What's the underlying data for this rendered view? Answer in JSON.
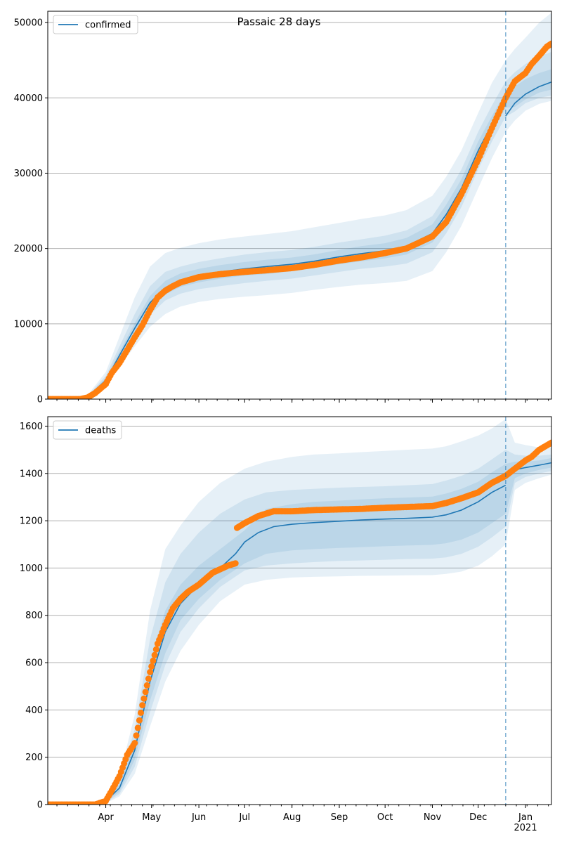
{
  "title": "Passaic 28 days",
  "chart_data": [
    {
      "type": "line",
      "panel": "top",
      "legend": "confirmed",
      "legend_position": "top-left",
      "grid": "horizontal",
      "ylim": [
        0,
        51500
      ],
      "yticks": [
        0,
        10000,
        20000,
        30000,
        40000,
        50000
      ],
      "ytick_labels": [
        "0",
        "10000",
        "20000",
        "30000",
        "40000",
        "50000"
      ],
      "xlim": [
        "2020-02-23",
        "2021-01-18"
      ],
      "forecast_start": "2020-12-19",
      "model": {
        "x": [
          "2020-02-23",
          "2020-03-10",
          "2020-03-20",
          "2020-04-01",
          "2020-04-10",
          "2020-04-20",
          "2020-04-30",
          "2020-05-10",
          "2020-05-20",
          "2020-06-01",
          "2020-06-15",
          "2020-07-01",
          "2020-07-15",
          "2020-08-01",
          "2020-08-15",
          "2020-09-01",
          "2020-09-15",
          "2020-10-01",
          "2020-10-15",
          "2020-11-01",
          "2020-11-10",
          "2020-11-20",
          "2020-12-01",
          "2020-12-10",
          "2020-12-19",
          "2020-12-19",
          "2020-12-25",
          "2021-01-01",
          "2021-01-10",
          "2021-01-18"
        ],
        "y": [
          0,
          0,
          300,
          2500,
          5800,
          9400,
          12800,
          14800,
          15800,
          16400,
          16900,
          17300,
          17600,
          17900,
          18300,
          18900,
          19300,
          19700,
          20300,
          22000,
          24500,
          28000,
          33000,
          36500,
          39800,
          37600,
          39300,
          40500,
          41500,
          42100
        ]
      },
      "observed": {
        "x": [
          "2020-02-23",
          "2020-03-15",
          "2020-03-20",
          "2020-03-25",
          "2020-04-01",
          "2020-04-05",
          "2020-04-10",
          "2020-04-15",
          "2020-04-20",
          "2020-04-25",
          "2020-04-30",
          "2020-05-05",
          "2020-05-10",
          "2020-05-15",
          "2020-05-20",
          "2020-06-01",
          "2020-06-15",
          "2020-07-01",
          "2020-07-15",
          "2020-08-01",
          "2020-08-15",
          "2020-09-01",
          "2020-09-15",
          "2020-10-01",
          "2020-10-15",
          "2020-11-01",
          "2020-11-10",
          "2020-11-20",
          "2020-12-01",
          "2020-12-10",
          "2020-12-19",
          "2020-12-25",
          "2021-01-01",
          "2021-01-05",
          "2021-01-10",
          "2021-01-15",
          "2021-01-18"
        ],
        "y": [
          0,
          0,
          200,
          800,
          2000,
          3500,
          4800,
          6500,
          8200,
          9800,
          11800,
          13500,
          14400,
          15000,
          15500,
          16200,
          16600,
          16900,
          17100,
          17400,
          17800,
          18400,
          18800,
          19400,
          20000,
          21600,
          23500,
          27200,
          31800,
          36000,
          40000,
          42200,
          43300,
          44500,
          45600,
          46800,
          47200
        ]
      },
      "bands": {
        "x": [
          "2020-02-23",
          "2020-03-10",
          "2020-03-20",
          "2020-04-01",
          "2020-04-10",
          "2020-04-20",
          "2020-04-30",
          "2020-05-10",
          "2020-05-20",
          "2020-06-01",
          "2020-06-15",
          "2020-07-01",
          "2020-07-15",
          "2020-08-01",
          "2020-08-15",
          "2020-09-01",
          "2020-09-15",
          "2020-10-01",
          "2020-10-15",
          "2020-11-01",
          "2020-11-10",
          "2020-11-20",
          "2020-12-01",
          "2020-12-10",
          "2020-12-19",
          "2020-12-25",
          "2021-01-01",
          "2021-01-10",
          "2021-01-18"
        ],
        "outer_low": [
          0,
          0,
          200,
          1800,
          4300,
          7000,
          9600,
          11300,
          12300,
          12900,
          13300,
          13600,
          13800,
          14100,
          14500,
          14900,
          15200,
          15400,
          15700,
          17000,
          19500,
          23000,
          28000,
          32000,
          35500,
          37000,
          38300,
          39200,
          39600
        ],
        "outer_high": [
          0,
          0,
          500,
          3600,
          8300,
          13500,
          17600,
          19400,
          20100,
          20700,
          21200,
          21600,
          21900,
          22300,
          22800,
          23400,
          23900,
          24400,
          25100,
          27000,
          29500,
          33000,
          38000,
          42000,
          45000,
          46500,
          48000,
          50000,
          51300
        ],
        "middle_low": [
          0,
          0,
          250,
          2100,
          5000,
          8200,
          11200,
          13100,
          14000,
          14600,
          15000,
          15400,
          15700,
          16000,
          16400,
          16900,
          17300,
          17600,
          18000,
          19500,
          22000,
          25500,
          30500,
          34200,
          37500,
          38200,
          39300,
          40000,
          40300
        ],
        "middle_high": [
          0,
          0,
          400,
          3100,
          7000,
          11300,
          15000,
          16900,
          17600,
          18200,
          18700,
          19200,
          19500,
          19800,
          20200,
          20800,
          21200,
          21700,
          22400,
          24300,
          27000,
          30500,
          35500,
          39000,
          42200,
          43400,
          44500,
          45500,
          46100
        ],
        "inner_low": [
          0,
          0,
          280,
          2300,
          5400,
          8800,
          12000,
          13900,
          14900,
          15500,
          16000,
          16400,
          16600,
          17000,
          17400,
          17900,
          18300,
          18700,
          19200,
          20800,
          23300,
          26800,
          31800,
          35400,
          38700,
          38800,
          39800,
          40700,
          41100
        ],
        "inner_high": [
          0,
          0,
          350,
          2800,
          6300,
          10100,
          13700,
          15700,
          16700,
          17300,
          17800,
          18200,
          18500,
          18800,
          19200,
          19800,
          20300,
          20700,
          21400,
          23200,
          25800,
          29200,
          34200,
          37600,
          40800,
          41500,
          42500,
          43300,
          43800
        ]
      }
    },
    {
      "type": "line",
      "panel": "bottom",
      "legend": "deaths",
      "legend_position": "top-left",
      "grid": "horizontal",
      "ylim": [
        0,
        1640
      ],
      "yticks": [
        0,
        200,
        400,
        600,
        800,
        1000,
        1200,
        1400,
        1600
      ],
      "ytick_labels": [
        "0",
        "200",
        "400",
        "600",
        "800",
        "1000",
        "1200",
        "1400",
        "1600"
      ],
      "xlim": [
        "2020-02-23",
        "2021-01-18"
      ],
      "xticks": [
        "2020-04-01",
        "2020-05-01",
        "2020-06-01",
        "2020-07-01",
        "2020-08-01",
        "2020-09-01",
        "2020-10-01",
        "2020-11-01",
        "2020-12-01",
        "2021-01-01"
      ],
      "xtick_labels": [
        "Apr",
        "May",
        "Jun",
        "Jul",
        "Aug",
        "Sep",
        "Oct",
        "Nov",
        "Dec",
        "Jan"
      ],
      "year_label": "2021",
      "forecast_start": "2020-12-19",
      "model": {
        "x": [
          "2020-02-23",
          "2020-03-25",
          "2020-04-01",
          "2020-04-10",
          "2020-04-20",
          "2020-04-30",
          "2020-05-10",
          "2020-05-20",
          "2020-06-01",
          "2020-06-15",
          "2020-06-25",
          "2020-07-01",
          "2020-07-10",
          "2020-07-20",
          "2020-08-01",
          "2020-08-15",
          "2020-09-01",
          "2020-09-15",
          "2020-10-01",
          "2020-10-15",
          "2020-11-01",
          "2020-11-10",
          "2020-11-20",
          "2020-12-01",
          "2020-12-10",
          "2020-12-19",
          "2020-12-19",
          "2020-12-25",
          "2021-01-01",
          "2021-01-10",
          "2021-01-18"
        ],
        "y": [
          0,
          0,
          15,
          70,
          230,
          520,
          730,
          850,
          930,
          1000,
          1060,
          1110,
          1150,
          1175,
          1185,
          1192,
          1198,
          1203,
          1207,
          1210,
          1215,
          1225,
          1245,
          1280,
          1320,
          1350,
          1400,
          1415,
          1425,
          1435,
          1445
        ]
      },
      "observed": {
        "x": [
          "2020-02-23",
          "2020-03-25",
          "2020-04-01",
          "2020-04-05",
          "2020-04-10",
          "2020-04-15",
          "2020-04-20",
          "2020-04-25",
          "2020-04-30",
          "2020-05-05",
          "2020-05-10",
          "2020-05-15",
          "2020-05-20",
          "2020-05-25",
          "2020-06-01",
          "2020-06-10",
          "2020-06-20",
          "2020-06-25",
          "2020-06-26",
          "2020-07-01",
          "2020-07-10",
          "2020-07-20",
          "2020-08-01",
          "2020-08-15",
          "2020-09-01",
          "2020-09-15",
          "2020-10-01",
          "2020-10-15",
          "2020-11-01",
          "2020-11-10",
          "2020-11-20",
          "2020-12-01",
          "2020-12-10",
          "2020-12-19",
          "2020-12-25",
          "2021-01-01",
          "2021-01-05",
          "2021-01-10",
          "2021-01-18"
        ],
        "y": [
          0,
          0,
          15,
          60,
          120,
          210,
          260,
          420,
          560,
          680,
          760,
          830,
          870,
          900,
          930,
          980,
          1010,
          1020,
          1170,
          1190,
          1220,
          1240,
          1240,
          1245,
          1248,
          1250,
          1255,
          1258,
          1262,
          1275,
          1295,
          1320,
          1360,
          1390,
          1420,
          1455,
          1470,
          1500,
          1530
        ]
      },
      "bands": {
        "x": [
          "2020-02-23",
          "2020-03-25",
          "2020-04-01",
          "2020-04-10",
          "2020-04-20",
          "2020-04-30",
          "2020-05-10",
          "2020-05-20",
          "2020-06-01",
          "2020-06-15",
          "2020-07-01",
          "2020-07-15",
          "2020-08-01",
          "2020-08-15",
          "2020-09-01",
          "2020-09-15",
          "2020-10-01",
          "2020-10-15",
          "2020-11-01",
          "2020-11-10",
          "2020-11-20",
          "2020-12-01",
          "2020-12-10",
          "2020-12-19",
          "2020-12-25",
          "2021-01-01",
          "2021-01-10",
          "2021-01-18"
        ],
        "outer_low": [
          0,
          0,
          5,
          35,
          130,
          330,
          520,
          650,
          760,
          860,
          930,
          950,
          960,
          963,
          965,
          967,
          968,
          969,
          970,
          975,
          985,
          1010,
          1050,
          1100,
          1330,
          1360,
          1380,
          1395
        ],
        "outer_high": [
          0,
          0,
          30,
          120,
          380,
          820,
          1080,
          1180,
          1280,
          1360,
          1420,
          1450,
          1470,
          1480,
          1485,
          1490,
          1495,
          1500,
          1505,
          1515,
          1535,
          1560,
          1590,
          1630,
          1530,
          1520,
          1510,
          1510
        ],
        "middle_low": [
          0,
          0,
          8,
          45,
          160,
          390,
          590,
          730,
          830,
          920,
          990,
          1010,
          1020,
          1025,
          1030,
          1032,
          1035,
          1038,
          1040,
          1045,
          1060,
          1090,
          1130,
          1175,
          1360,
          1385,
          1400,
          1410
        ],
        "middle_high": [
          0,
          0,
          25,
          100,
          320,
          700,
          940,
          1060,
          1150,
          1230,
          1290,
          1320,
          1330,
          1335,
          1340,
          1343,
          1346,
          1350,
          1355,
          1370,
          1390,
          1420,
          1460,
          1500,
          1480,
          1475,
          1475,
          1480
        ],
        "inner_low": [
          0,
          0,
          10,
          55,
          190,
          440,
          640,
          780,
          870,
          950,
          1020,
          1060,
          1075,
          1080,
          1085,
          1088,
          1092,
          1095,
          1098,
          1105,
          1120,
          1150,
          1190,
          1230,
          1380,
          1400,
          1415,
          1425
        ],
        "inner_high": [
          0,
          0,
          20,
          85,
          270,
          600,
          820,
          930,
          1010,
          1080,
          1160,
          1250,
          1270,
          1280,
          1285,
          1290,
          1295,
          1298,
          1302,
          1315,
          1335,
          1365,
          1405,
          1440,
          1450,
          1450,
          1455,
          1465
        ]
      }
    }
  ],
  "colors": {
    "model_line": "#1f77b4",
    "observed": "#ff7f0e",
    "band": "#1f77b4",
    "forecast_line": "#1f77b4",
    "grid": "#b0b0b0",
    "axis": "#000000"
  }
}
